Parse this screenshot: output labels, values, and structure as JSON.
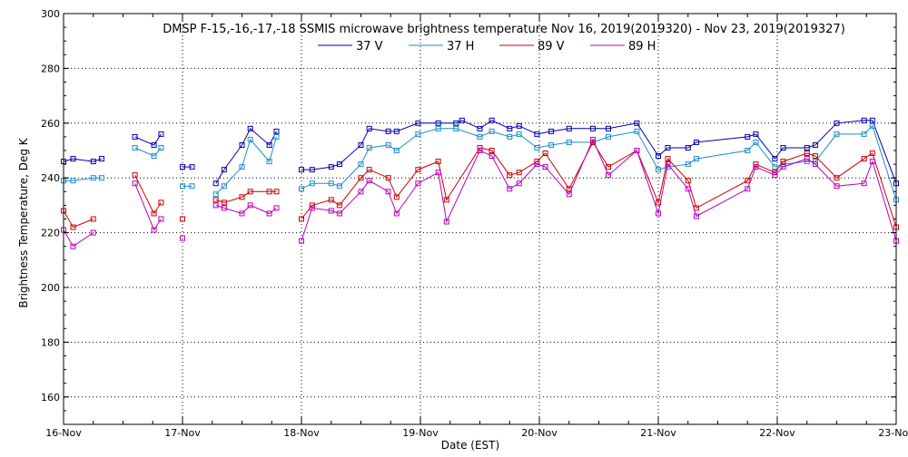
{
  "chart_data": {
    "type": "line",
    "title": "DMSP F-15,-16,-17,-18 SSMIS microwave brightness temperature Nov 16, 2019(2019320) - Nov 23, 2019(2019327)",
    "xlabel": "Date (EST)",
    "ylabel": "Brightness Temperature, Deg K",
    "xlim": [
      0,
      7
    ],
    "ylim": [
      150,
      300
    ],
    "x_unit": "days since 16-Nov 00:00 EST",
    "x_tick_labels": [
      "16-Nov",
      "17-Nov",
      "18-Nov",
      "19-Nov",
      "20-Nov",
      "21-Nov",
      "22-Nov",
      "23-Nov"
    ],
    "y_ticks": [
      160,
      180,
      200,
      220,
      240,
      260,
      280,
      300
    ],
    "grid": true,
    "legend_position": "top",
    "series": [
      {
        "name": "37 V",
        "color": "#0000aa",
        "segments": [
          [
            [
              0.0,
              246
            ],
            [
              0.08,
              247
            ],
            [
              0.25,
              246
            ],
            [
              0.32,
              247
            ]
          ],
          [
            [
              0.6,
              255
            ],
            [
              0.76,
              252
            ],
            [
              0.82,
              256
            ]
          ],
          [
            [
              1.0,
              244
            ],
            [
              1.08,
              244
            ]
          ],
          [
            [
              1.28,
              238
            ],
            [
              1.35,
              243
            ],
            [
              1.5,
              252
            ],
            [
              1.57,
              258
            ],
            [
              1.73,
              252
            ],
            [
              1.79,
              257
            ]
          ],
          [
            [
              2.0,
              243
            ],
            [
              2.09,
              243
            ],
            [
              2.25,
              244
            ],
            [
              2.32,
              245
            ],
            [
              2.5,
              252
            ],
            [
              2.57,
              258
            ],
            [
              2.73,
              257
            ],
            [
              2.8,
              257
            ],
            [
              2.98,
              260
            ],
            [
              3.15,
              260
            ],
            [
              3.3,
              260
            ],
            [
              3.35,
              261
            ],
            [
              3.5,
              258
            ],
            [
              3.6,
              261
            ],
            [
              3.75,
              258
            ],
            [
              3.83,
              259
            ],
            [
              3.98,
              256
            ],
            [
              4.1,
              257
            ],
            [
              4.25,
              258
            ],
            [
              4.45,
              258
            ],
            [
              4.58,
              258
            ],
            [
              4.82,
              260
            ],
            [
              5.0,
              248
            ],
            [
              5.08,
              251
            ],
            [
              5.25,
              251
            ],
            [
              5.32,
              253
            ],
            [
              5.75,
              255
            ],
            [
              5.82,
              256
            ],
            [
              5.98,
              247
            ],
            [
              6.05,
              251
            ],
            [
              6.25,
              251
            ],
            [
              6.32,
              252
            ],
            [
              6.5,
              260
            ],
            [
              6.73,
              261
            ],
            [
              6.8,
              261
            ],
            [
              7.0,
              238
            ]
          ]
        ]
      },
      {
        "name": "37 H",
        "color": "#1a8ecc",
        "segments": [
          [
            [
              0.0,
              239
            ],
            [
              0.08,
              239
            ],
            [
              0.25,
              240
            ],
            [
              0.32,
              240
            ]
          ],
          [
            [
              0.6,
              251
            ],
            [
              0.76,
              248
            ],
            [
              0.82,
              251
            ]
          ],
          [
            [
              1.0,
              237
            ],
            [
              1.08,
              237
            ]
          ],
          [
            [
              1.28,
              234
            ],
            [
              1.35,
              237
            ],
            [
              1.5,
              244
            ],
            [
              1.57,
              254
            ],
            [
              1.73,
              246
            ],
            [
              1.79,
              255
            ]
          ],
          [
            [
              2.0,
              236
            ],
            [
              2.09,
              238
            ],
            [
              2.25,
              238
            ],
            [
              2.32,
              237
            ],
            [
              2.5,
              245
            ],
            [
              2.57,
              251
            ],
            [
              2.73,
              252
            ],
            [
              2.8,
              250
            ],
            [
              2.98,
              256
            ],
            [
              3.15,
              258
            ],
            [
              3.3,
              258
            ],
            [
              3.5,
              255
            ],
            [
              3.6,
              257
            ],
            [
              3.75,
              255
            ],
            [
              3.83,
              256
            ],
            [
              3.98,
              251
            ],
            [
              4.1,
              252
            ],
            [
              4.25,
              253
            ],
            [
              4.45,
              253
            ],
            [
              4.58,
              255
            ],
            [
              4.82,
              257
            ],
            [
              5.0,
              243
            ],
            [
              5.08,
              244
            ],
            [
              5.25,
              245
            ],
            [
              5.32,
              247
            ],
            [
              5.75,
              250
            ],
            [
              5.82,
              253
            ],
            [
              5.98,
              244
            ],
            [
              6.05,
              245
            ],
            [
              6.25,
              246
            ],
            [
              6.32,
              246
            ],
            [
              6.5,
              256
            ],
            [
              6.73,
              256
            ],
            [
              6.8,
              259
            ],
            [
              7.0,
              232
            ]
          ]
        ]
      },
      {
        "name": "89 V",
        "color": "#cc0000",
        "segments": [
          [
            [
              0.0,
              228
            ],
            [
              0.08,
              222
            ],
            [
              0.25,
              225
            ]
          ],
          [
            [
              0.6,
              241
            ],
            [
              0.76,
              227
            ],
            [
              0.82,
              231
            ]
          ],
          [
            [
              1.0,
              225
            ]
          ],
          [
            [
              1.28,
              232
            ],
            [
              1.35,
              231
            ],
            [
              1.5,
              233
            ],
            [
              1.57,
              235
            ],
            [
              1.73,
              235
            ],
            [
              1.79,
              235
            ]
          ],
          [
            [
              2.0,
              225
            ],
            [
              2.09,
              230
            ],
            [
              2.25,
              232
            ],
            [
              2.32,
              230
            ],
            [
              2.5,
              240
            ],
            [
              2.57,
              243
            ],
            [
              2.73,
              240
            ],
            [
              2.8,
              233
            ],
            [
              2.98,
              243
            ],
            [
              3.15,
              246
            ],
            [
              3.22,
              232
            ],
            [
              3.5,
              251
            ],
            [
              3.6,
              250
            ],
            [
              3.75,
              241
            ],
            [
              3.83,
              242
            ],
            [
              3.98,
              246
            ],
            [
              4.05,
              249
            ],
            [
              4.25,
              236
            ],
            [
              4.45,
              253
            ],
            [
              4.58,
              244
            ],
            [
              4.82,
              250
            ],
            [
              5.0,
              231
            ],
            [
              5.08,
              247
            ],
            [
              5.25,
              239
            ],
            [
              5.32,
              229
            ],
            [
              5.75,
              239
            ],
            [
              5.82,
              245
            ],
            [
              5.98,
              242
            ],
            [
              6.05,
              246
            ],
            [
              6.25,
              249
            ],
            [
              6.32,
              248
            ],
            [
              6.5,
              240
            ],
            [
              6.73,
              247
            ],
            [
              6.8,
              249
            ],
            [
              7.0,
              222
            ]
          ]
        ]
      },
      {
        "name": "89 H",
        "color": "#bb00bb",
        "segments": [
          [
            [
              0.0,
              221
            ],
            [
              0.08,
              215
            ],
            [
              0.25,
              220
            ]
          ],
          [
            [
              0.6,
              238
            ],
            [
              0.76,
              221
            ],
            [
              0.82,
              225
            ]
          ],
          [
            [
              1.0,
              218
            ]
          ],
          [
            [
              1.28,
              230
            ],
            [
              1.35,
              229
            ],
            [
              1.5,
              227
            ],
            [
              1.57,
              230
            ],
            [
              1.73,
              227
            ],
            [
              1.79,
              229
            ]
          ],
          [
            [
              2.0,
              217
            ],
            [
              2.09,
              229
            ],
            [
              2.25,
              228
            ],
            [
              2.32,
              227
            ],
            [
              2.5,
              235
            ],
            [
              2.57,
              239
            ],
            [
              2.73,
              235
            ],
            [
              2.8,
              227
            ],
            [
              2.98,
              238
            ],
            [
              3.15,
              242
            ],
            [
              3.22,
              224
            ],
            [
              3.5,
              250
            ],
            [
              3.6,
              248
            ],
            [
              3.75,
              236
            ],
            [
              3.83,
              238
            ],
            [
              3.98,
              245
            ],
            [
              4.05,
              244
            ],
            [
              4.25,
              234
            ],
            [
              4.45,
              254
            ],
            [
              4.58,
              241
            ],
            [
              4.82,
              250
            ],
            [
              5.0,
              227
            ],
            [
              5.08,
              245
            ],
            [
              5.25,
              236
            ],
            [
              5.32,
              226
            ],
            [
              5.75,
              236
            ],
            [
              5.82,
              244
            ],
            [
              5.98,
              241
            ],
            [
              6.05,
              244
            ],
            [
              6.25,
              247
            ],
            [
              6.32,
              245
            ],
            [
              6.5,
              237
            ],
            [
              6.73,
              238
            ],
            [
              6.8,
              246
            ],
            [
              7.0,
              217
            ]
          ]
        ]
      }
    ]
  }
}
